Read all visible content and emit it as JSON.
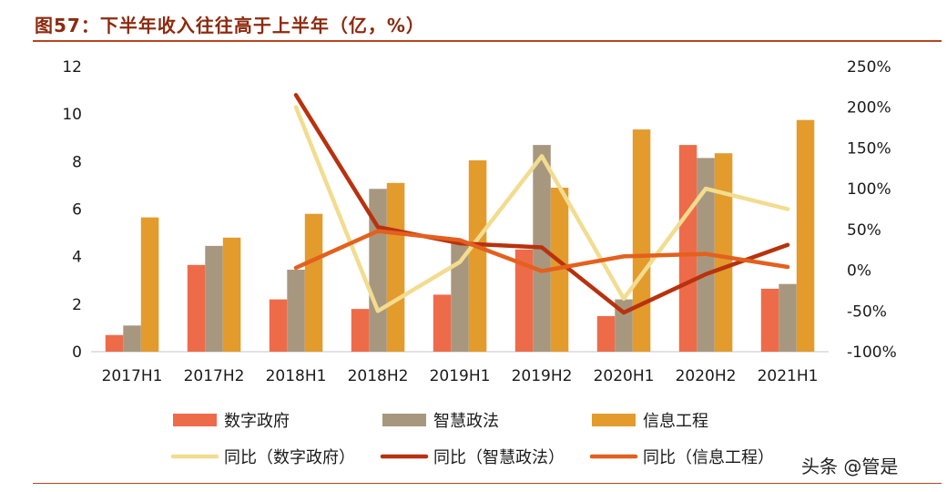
{
  "figure": {
    "title": "图57：下半年收入往往高于上半年（亿，%）",
    "watermark": "头条 @管是"
  },
  "colors": {
    "digital_gov": "#EE6B4A",
    "smart_law": "#A8977F",
    "info_eng": "#E39B2C",
    "yoy_digital_gov": "#F2DC8F",
    "yoy_smart_law": "#B8320F",
    "yoy_info_eng": "#E3601E"
  },
  "chart_data": {
    "type": "bar",
    "categories": [
      "2017H1",
      "2017H2",
      "2018H1",
      "2018H2",
      "2019H1",
      "2019H2",
      "2020H1",
      "2020H2",
      "2021H1"
    ],
    "series": [
      {
        "name": "数字政府",
        "type": "bar",
        "axis": "left",
        "values": [
          0.7,
          3.65,
          2.2,
          1.8,
          2.4,
          4.3,
          1.5,
          8.7,
          2.65
        ]
      },
      {
        "name": "智慧政法",
        "type": "bar",
        "axis": "left",
        "values": [
          1.1,
          4.45,
          3.45,
          6.85,
          4.6,
          8.7,
          2.2,
          8.15,
          2.85
        ]
      },
      {
        "name": "信息工程",
        "type": "bar",
        "axis": "left",
        "values": [
          5.65,
          4.8,
          5.8,
          7.1,
          8.05,
          6.9,
          9.35,
          8.35,
          9.75
        ]
      },
      {
        "name": "同比（数字政府）",
        "type": "line",
        "axis": "right",
        "values": [
          null,
          null,
          200,
          -50,
          10,
          140,
          -35,
          100,
          75
        ]
      },
      {
        "name": "同比（智慧政法）",
        "type": "line",
        "axis": "right",
        "values": [
          null,
          null,
          215,
          53,
          33,
          28,
          -52,
          -5,
          31
        ]
      },
      {
        "name": "同比（信息工程）",
        "type": "line",
        "axis": "right",
        "values": [
          null,
          null,
          3,
          48,
          37,
          -1,
          17,
          20,
          4
        ]
      }
    ],
    "y_left": {
      "ticks": [
        "0",
        "2",
        "4",
        "6",
        "8",
        "10",
        "12"
      ],
      "range": [
        0,
        12
      ]
    },
    "y_right": {
      "ticks": [
        "-100%",
        "-50%",
        "0%",
        "50%",
        "100%",
        "150%",
        "200%",
        "250%"
      ],
      "range": [
        -100,
        250
      ]
    },
    "legend_position": "bottom",
    "grid": false
  }
}
